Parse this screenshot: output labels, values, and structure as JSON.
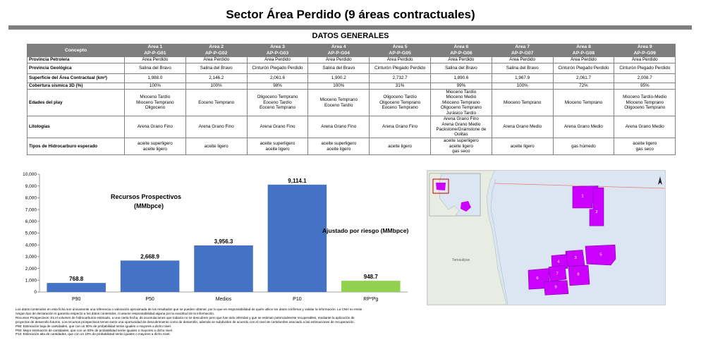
{
  "title": "Sector Área Perdido (9 áreas contractuales)",
  "section_title": "DATOS GENERALES",
  "table": {
    "concept_header": "Concepto",
    "areas": [
      {
        "name": "Área 1",
        "code": "AP-P-G01"
      },
      {
        "name": "Área 2",
        "code": "AP-P-G02"
      },
      {
        "name": "Área 3",
        "code": "AP-P-G03"
      },
      {
        "name": "Área 4",
        "code": "AP-P-G04"
      },
      {
        "name": "Área 5",
        "code": "AP-P-G05"
      },
      {
        "name": "Área 6",
        "code": "AP-P-G06"
      },
      {
        "name": "Área 7",
        "code": "AP-P-G07"
      },
      {
        "name": "Área 8",
        "code": "AP-P-G08"
      },
      {
        "name": "Área 9",
        "code": "AP-P-G09"
      }
    ],
    "rows": [
      {
        "label": "Provincia Petrolera",
        "cells": [
          "Área Perdido",
          "Área Perdido",
          "Área Perdido",
          "Área Perdido",
          "Área Perdido",
          "Área Perdido",
          "Área Perdido",
          "Área Perdido",
          "Área Perdido"
        ]
      },
      {
        "label": "Provincia Geológica",
        "cells": [
          "Salina del Bravo",
          "Salina del Bravo",
          "Cinturón Plegado Perdido",
          "Salina del Bravo",
          "Cinturón Plegado Perdido",
          "Salina del Bravo",
          "Salina del Bravo",
          "Cinturón Plegado Perdido",
          "Cinturón Plegado Perdido"
        ]
      },
      {
        "label": "Superficie del Área Contractual (km²)",
        "cells": [
          "1,988.0",
          "2,146.2",
          "2,061.6",
          "1,900.2",
          "2,732.7",
          "1,890.6",
          "1,967.9",
          "2,061.7",
          "2,008.7"
        ]
      },
      {
        "label": "Cobertura sísmica 3D (%)",
        "cells": [
          "100%",
          "100%",
          "98%",
          "100%",
          "31%",
          "99%",
          "100%",
          "72%",
          "95%"
        ]
      },
      {
        "label": "Edades del play",
        "cells": [
          [
            "Mioceno Tardío",
            "Mioceno Temprano",
            "Oligoceno"
          ],
          [
            "Eoceno Temprano"
          ],
          [
            "Oligoceno Temprano",
            "Eoceno Tardío",
            "Eoceno Temprano"
          ],
          [
            "Mioceno Temprano",
            "Eoceno Tardío"
          ],
          [
            "Oligoceno Tardío",
            "Oligoceno Temprano",
            "Eoceno Temprano"
          ],
          [
            "Mioceno Tardío",
            "Mioceno Medio",
            "Mioceno Temprano",
            "Oligoceno Temprano",
            "Jurásico Tardío"
          ],
          [
            "Mioceno Temprano"
          ],
          [
            "Mioceno Temprano"
          ],
          [
            "Mioceno Tardío-Medio",
            "Mioceno Temprano",
            "Oligoceno Temprano"
          ]
        ]
      },
      {
        "label": "Litologías",
        "cells": [
          [
            "Arena Grano Fino"
          ],
          [
            "Arena Grano Fino"
          ],
          [
            "Arena Grano Fino"
          ],
          [
            "Arena Grano Fino"
          ],
          [
            "Arena Grano Fino"
          ],
          [
            "Arena Grano Fino",
            "Arena Grano Medio",
            "Packstone/Grainstone de",
            "Oolitas"
          ],
          [
            "Arena Grano Medio"
          ],
          [
            "Arena Grano Medio"
          ],
          [
            "Arena Grano Medio"
          ]
        ]
      },
      {
        "label": "Tipos de Hidrocarburo esperado",
        "cells": [
          [
            "aceite superligero",
            "aceite ligero"
          ],
          [
            "aceite ligero"
          ],
          [
            "aceite superligero",
            "aceite ligero"
          ],
          [
            "aceite superligero",
            "aceite ligero"
          ],
          [
            "aceite ligero"
          ],
          [
            "aceite superligero",
            "aceite ligero",
            "gas seco"
          ],
          [
            "aceite ligero"
          ],
          [
            "gas húmedo"
          ],
          [
            "aceite ligero",
            "gas seco"
          ]
        ]
      }
    ]
  },
  "chart_data": {
    "type": "bar",
    "categories": [
      "P90",
      "P50",
      "Medios",
      "P10",
      "RP*Pg"
    ],
    "values": [
      768.8,
      2668.9,
      3956.3,
      9114.1,
      948.7
    ],
    "value_labels": [
      "768.8",
      "2,668.9",
      "3,956.3",
      "9,114.1",
      "948.7"
    ],
    "colors": [
      "#4472c4",
      "#4472c4",
      "#4472c4",
      "#4472c4",
      "#92d050"
    ],
    "yticks": [
      "0",
      "1,000",
      "2,000",
      "3,000",
      "4,000",
      "5,000",
      "6,000",
      "7,000",
      "8,000",
      "9,000",
      "10,000"
    ],
    "ylim": [
      0,
      10000
    ],
    "annotation_main_line1": "Recursos Prospectivos",
    "annotation_main_line2": "(MMbpce)",
    "annotation_risk": "Ajustado por riesgo (MMbpce)",
    "grid": false
  },
  "map": {
    "label_region": "Tamaulipas",
    "block_labels": [
      "1",
      "2",
      "3",
      "4",
      "5",
      "6",
      "7",
      "8",
      "9"
    ],
    "block_color": "#cc00ff",
    "sea_color": "#dce6f2",
    "land_color": "#e8ede4"
  },
  "notes": [
    "Los datos contenidos en esta ficha son únicamente una referencia o valoración aproximada de los resultados que se pueden obtener, por lo que es responsabilidad de quién utilice los datos confirmar y validar la información. La CNH no emite",
    "ningún tipo de declaración ni garantía respecto a los datos contenidos, ni asume responsabilidad alguna por la exactitud de la información.",
    "Recursos Prospectivos: Es el volumen de hidrocarburos estimado, a una cierta fecha, de acumulaciones que todavía no se descubren pero que han sido inferidas y que se estiman potencialmente recuperables, mediante la aplicación de",
    "proyectos de desarrollo futuros. Los recursos prospectivos tienen tanto una oportunidad de descubrimiento como de desarrollo, además se subdividen de acuerdo con el nivel de certidumbre asociado a las estimaciones de recuperación.",
    "P90: Estimación baja de cantidades, que con un 90% de probabilidad serán iguales o mayores a dicho nivel.",
    "P50: Mejor estimación de cantidades, que con un 50% de probabilidad serán iguales o mayores a dicho nivel.",
    "P10: Estimación alta de cantidades, que con un 10% de probabilidad serán iguales o mayores a dicho nivel."
  ]
}
